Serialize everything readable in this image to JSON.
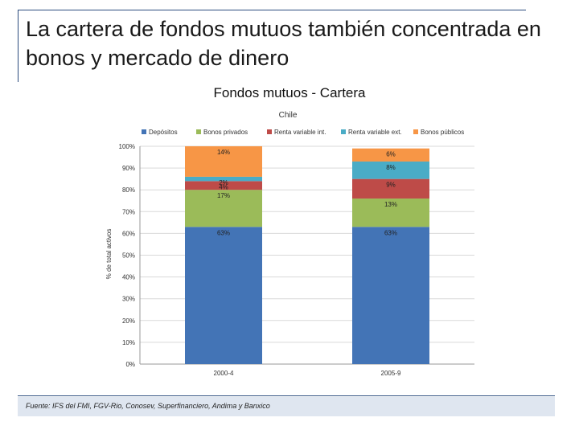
{
  "slide": {
    "title": "La cartera de fondos mutuos también concentrada en bonos y mercado de dinero",
    "chart_heading": "Fondos mutuos - Cartera",
    "source": "Fuente: IFS del FMI, FGV-Rio, Conosev, Superfinanciero, Andima y Banxico"
  },
  "chart_data": {
    "type": "bar",
    "stacked": true,
    "title": "Chile",
    "xlabel": "",
    "ylabel": "% de total activos",
    "ylim": [
      0,
      100
    ],
    "yticks": [
      "0%",
      "10%",
      "20%",
      "30%",
      "40%",
      "50%",
      "60%",
      "70%",
      "80%",
      "90%",
      "100%"
    ],
    "categories": [
      "2000-4",
      "2005-9"
    ],
    "series": [
      {
        "name": "Depósitos",
        "color": "#4374b6",
        "values": [
          63,
          63
        ],
        "labels": [
          "63%",
          "63%"
        ]
      },
      {
        "name": "Bonos privados",
        "color": "#9bbb59",
        "values": [
          17,
          13
        ],
        "labels": [
          "17%",
          "13%"
        ]
      },
      {
        "name": "Renta variable int.",
        "color": "#be4b48",
        "values": [
          4,
          9
        ],
        "labels": [
          "4%",
          "9%"
        ]
      },
      {
        "name": "Renta variable ext.",
        "color": "#4aacc6",
        "values": [
          2,
          8
        ],
        "labels": [
          "2%",
          "8%"
        ]
      },
      {
        "name": "Bonos públicos",
        "color": "#f79646",
        "values": [
          14,
          6
        ],
        "labels": [
          "14%",
          "6%"
        ]
      }
    ]
  }
}
